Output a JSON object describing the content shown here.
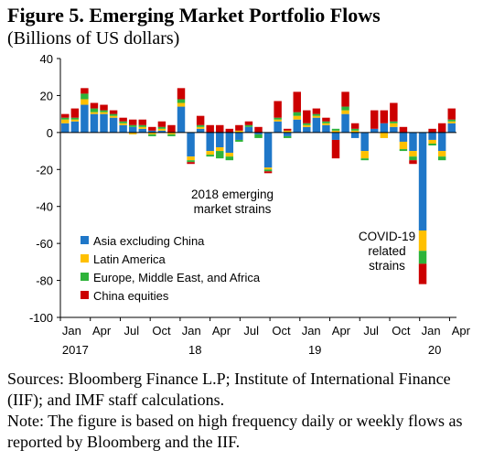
{
  "figure": {
    "title": "Figure 5. Emerging Market Portfolio Flows",
    "subtitle": "(Billions of US dollars)",
    "sources": "Sources: Bloomberg Finance L.P; Institute of International Finance (IIF); and IMF staff calculations.",
    "note": "Note: The figure is based on high frequency daily or weekly flows as reported by Bloomberg and the IIF."
  },
  "chart_data": {
    "type": "bar",
    "stacked": true,
    "ylim": [
      -100,
      40
    ],
    "yticks": [
      40,
      20,
      0,
      -20,
      -40,
      -60,
      -80,
      -100
    ],
    "grid": false,
    "legend_position": "bottom-left",
    "month_ticks": [
      "Jan",
      "Apr",
      "Jul",
      "Oct",
      "Jan",
      "Apr",
      "Jul",
      "Oct",
      "Jan",
      "Apr",
      "Jul",
      "Oct",
      "Jan",
      "Apr"
    ],
    "year_labels": [
      {
        "label": "2017",
        "at_week": 0
      },
      {
        "label": "18",
        "at_week": 52
      },
      {
        "label": "19",
        "at_week": 104
      },
      {
        "label": "20",
        "at_week": 156
      }
    ],
    "series": [
      {
        "name": "Asia excluding China",
        "color": "#1f77c8",
        "values": [
          5,
          6,
          15,
          10,
          10,
          8,
          4,
          3,
          2,
          1,
          1,
          0,
          14,
          -13,
          2,
          -10,
          -8,
          -11,
          -4,
          3,
          -1,
          -19,
          6,
          -2,
          7,
          3,
          8,
          4,
          -4,
          10,
          -3,
          -10,
          2,
          5,
          3,
          -5,
          -10,
          -53,
          -4,
          -10,
          5
        ]
      },
      {
        "name": "Latin America",
        "color": "#ffc000",
        "values": [
          2,
          1,
          3,
          1,
          1,
          1,
          1,
          -1,
          1,
          -1,
          1,
          -1,
          2,
          -2,
          1,
          -2,
          -2,
          -2,
          1,
          0,
          0,
          -1,
          1,
          1,
          2,
          1,
          1,
          1,
          1,
          2,
          1,
          -4,
          0,
          -3,
          2,
          -4,
          -3,
          -11,
          -2,
          -3,
          1
        ]
      },
      {
        "name": "Europe, Middle East, and Africa",
        "color": "#2eb33a",
        "values": [
          1,
          1,
          3,
          2,
          1,
          1,
          1,
          1,
          1,
          -1,
          1,
          -1,
          2,
          -1,
          1,
          -1,
          -4,
          -2,
          -1,
          1,
          -2,
          -1,
          1,
          -1,
          2,
          1,
          1,
          1,
          1,
          2,
          1,
          -1,
          0,
          0,
          1,
          -1,
          -2,
          -7,
          -1,
          -2,
          1
        ]
      },
      {
        "name": "China equities",
        "color": "#cc0000",
        "values": [
          2,
          5,
          3,
          3,
          3,
          2,
          2,
          3,
          3,
          2,
          3,
          4,
          6,
          -1,
          5,
          4,
          4,
          2,
          3,
          2,
          3,
          -1,
          9,
          1,
          11,
          7,
          3,
          2,
          -10,
          8,
          3,
          0,
          10,
          7,
          10,
          3,
          -2,
          -11,
          2,
          5,
          6
        ]
      }
    ],
    "annotations": [
      {
        "text": "2018 emerging market strains",
        "lines": [
          "2018 emerging",
          "market strains"
        ]
      },
      {
        "text": "COVID-19 related strains",
        "lines": [
          "COVID-19",
          "related",
          "strains"
        ]
      }
    ]
  }
}
